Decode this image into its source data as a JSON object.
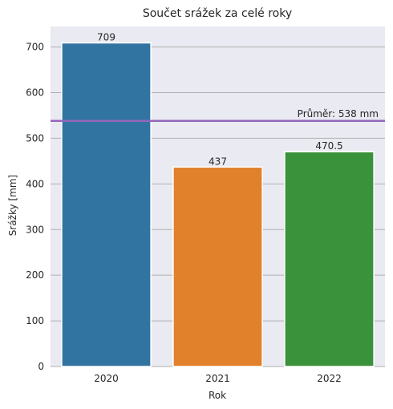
{
  "chart_data": {
    "type": "bar",
    "title": "Součet srážek za celé roky",
    "xlabel": "Rok",
    "ylabel": "Srážky [mm]",
    "categories": [
      "2020",
      "2021",
      "2022"
    ],
    "values": [
      709,
      437,
      470.5
    ],
    "data_labels": [
      "709",
      "437",
      "470.5"
    ],
    "colors": [
      "#3274a1",
      "#e1812c",
      "#3a923a"
    ],
    "ylim": [
      0,
      745
    ],
    "yticks": [
      0,
      100,
      200,
      300,
      400,
      500,
      600,
      700
    ],
    "grid": "horizontal",
    "reference_line": {
      "value": 538,
      "label": "Průměr: 538 mm",
      "color": "#9467bd"
    },
    "background": "#eaeaf2"
  }
}
